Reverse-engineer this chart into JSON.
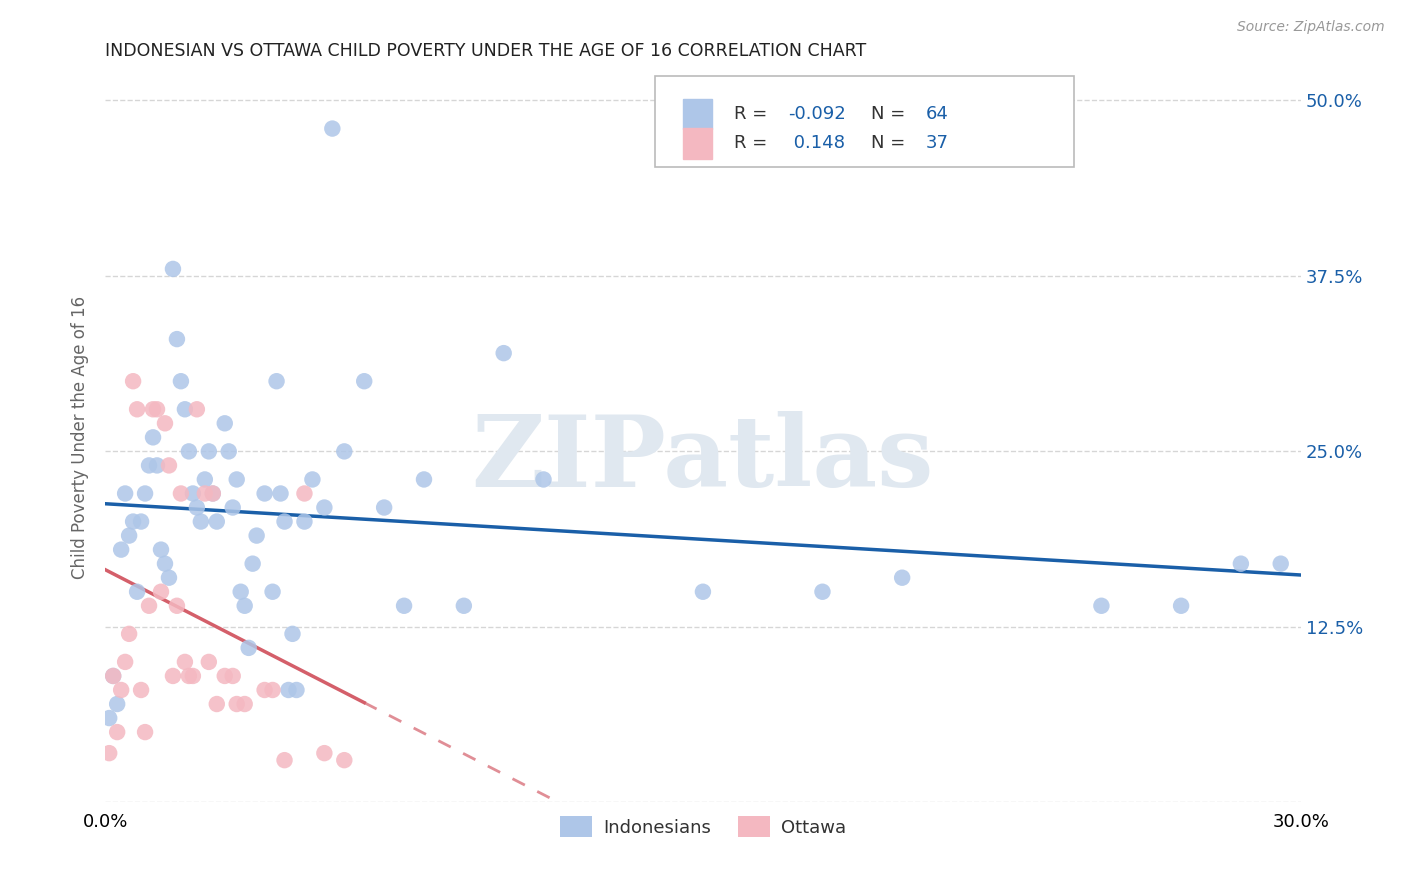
{
  "title": "INDONESIAN VS OTTAWA CHILD POVERTY UNDER THE AGE OF 16 CORRELATION CHART",
  "source": "Source: ZipAtlas.com",
  "ylabel": "Child Poverty Under the Age of 16",
  "xmin": 0.0,
  "xmax": 0.3,
  "ymin": 0.0,
  "ymax": 0.52,
  "yticks": [
    0.0,
    0.125,
    0.25,
    0.375,
    0.5
  ],
  "ytick_labels": [
    "",
    "12.5%",
    "25.0%",
    "37.5%",
    "50.0%"
  ],
  "xticks": [
    0.0,
    0.05,
    0.1,
    0.15,
    0.2,
    0.25,
    0.3
  ],
  "xtick_labels": [
    "0.0%",
    "",
    "",
    "",
    "",
    "",
    "30.0%"
  ],
  "indonesian_color": "#aec6e8",
  "ottawa_color": "#f4b8c1",
  "indonesian_line_color": "#1a5fa8",
  "ottawa_line_color": "#d45f6a",
  "r_indonesian": -0.092,
  "n_indonesian": 64,
  "r_ottawa": 0.148,
  "n_ottawa": 37,
  "indonesian_points": [
    [
      0.001,
      0.06
    ],
    [
      0.002,
      0.09
    ],
    [
      0.003,
      0.07
    ],
    [
      0.004,
      0.18
    ],
    [
      0.005,
      0.22
    ],
    [
      0.006,
      0.19
    ],
    [
      0.007,
      0.2
    ],
    [
      0.008,
      0.15
    ],
    [
      0.009,
      0.2
    ],
    [
      0.01,
      0.22
    ],
    [
      0.011,
      0.24
    ],
    [
      0.012,
      0.26
    ],
    [
      0.013,
      0.24
    ],
    [
      0.014,
      0.18
    ],
    [
      0.015,
      0.17
    ],
    [
      0.016,
      0.16
    ],
    [
      0.017,
      0.38
    ],
    [
      0.018,
      0.33
    ],
    [
      0.019,
      0.3
    ],
    [
      0.02,
      0.28
    ],
    [
      0.021,
      0.25
    ],
    [
      0.022,
      0.22
    ],
    [
      0.023,
      0.21
    ],
    [
      0.024,
      0.2
    ],
    [
      0.025,
      0.23
    ],
    [
      0.026,
      0.25
    ],
    [
      0.027,
      0.22
    ],
    [
      0.028,
      0.2
    ],
    [
      0.03,
      0.27
    ],
    [
      0.031,
      0.25
    ],
    [
      0.032,
      0.21
    ],
    [
      0.033,
      0.23
    ],
    [
      0.034,
      0.15
    ],
    [
      0.035,
      0.14
    ],
    [
      0.036,
      0.11
    ],
    [
      0.037,
      0.17
    ],
    [
      0.038,
      0.19
    ],
    [
      0.04,
      0.22
    ],
    [
      0.042,
      0.15
    ],
    [
      0.043,
      0.3
    ],
    [
      0.044,
      0.22
    ],
    [
      0.045,
      0.2
    ],
    [
      0.046,
      0.08
    ],
    [
      0.047,
      0.12
    ],
    [
      0.048,
      0.08
    ],
    [
      0.05,
      0.2
    ],
    [
      0.052,
      0.23
    ],
    [
      0.055,
      0.21
    ],
    [
      0.057,
      0.48
    ],
    [
      0.06,
      0.25
    ],
    [
      0.065,
      0.3
    ],
    [
      0.07,
      0.21
    ],
    [
      0.075,
      0.14
    ],
    [
      0.08,
      0.23
    ],
    [
      0.09,
      0.14
    ],
    [
      0.1,
      0.32
    ],
    [
      0.11,
      0.23
    ],
    [
      0.15,
      0.15
    ],
    [
      0.18,
      0.15
    ],
    [
      0.2,
      0.16
    ],
    [
      0.25,
      0.14
    ],
    [
      0.27,
      0.14
    ],
    [
      0.285,
      0.17
    ],
    [
      0.295,
      0.17
    ]
  ],
  "ottawa_points": [
    [
      0.001,
      0.035
    ],
    [
      0.002,
      0.09
    ],
    [
      0.003,
      0.05
    ],
    [
      0.004,
      0.08
    ],
    [
      0.005,
      0.1
    ],
    [
      0.006,
      0.12
    ],
    [
      0.007,
      0.3
    ],
    [
      0.008,
      0.28
    ],
    [
      0.009,
      0.08
    ],
    [
      0.01,
      0.05
    ],
    [
      0.011,
      0.14
    ],
    [
      0.012,
      0.28
    ],
    [
      0.013,
      0.28
    ],
    [
      0.014,
      0.15
    ],
    [
      0.015,
      0.27
    ],
    [
      0.016,
      0.24
    ],
    [
      0.017,
      0.09
    ],
    [
      0.018,
      0.14
    ],
    [
      0.019,
      0.22
    ],
    [
      0.02,
      0.1
    ],
    [
      0.021,
      0.09
    ],
    [
      0.022,
      0.09
    ],
    [
      0.023,
      0.28
    ],
    [
      0.025,
      0.22
    ],
    [
      0.026,
      0.1
    ],
    [
      0.027,
      0.22
    ],
    [
      0.028,
      0.07
    ],
    [
      0.03,
      0.09
    ],
    [
      0.032,
      0.09
    ],
    [
      0.033,
      0.07
    ],
    [
      0.035,
      0.07
    ],
    [
      0.04,
      0.08
    ],
    [
      0.042,
      0.08
    ],
    [
      0.045,
      0.03
    ],
    [
      0.05,
      0.22
    ],
    [
      0.055,
      0.035
    ],
    [
      0.06,
      0.03
    ]
  ],
  "watermark_text": "ZIPatlas",
  "background_color": "#ffffff",
  "grid_color": "#cccccc"
}
